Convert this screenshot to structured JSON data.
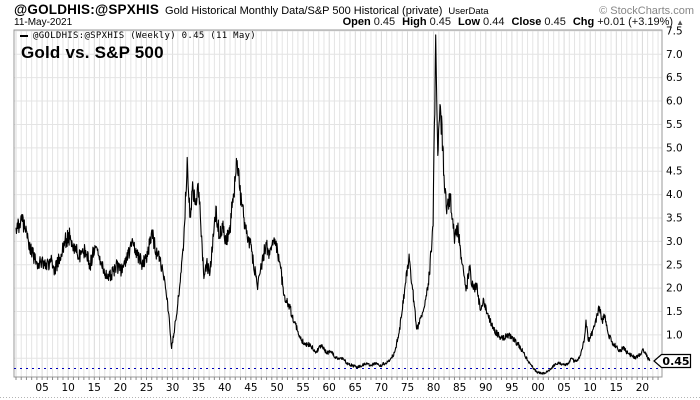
{
  "header": {
    "symbol": "@GOLDHIS:@SPXHIS",
    "description": "Gold Historical Monthly Data/S&P 500 Historical (private)",
    "source": "UserData",
    "copyright": "© StockCharts.com",
    "date": "11-May-2021",
    "quote": {
      "open_label": "Open",
      "open": "0.45",
      "high_label": "High",
      "high": "0.45",
      "low_label": "Low",
      "low": "0.44",
      "close_label": "Close",
      "close": "0.45",
      "chg_label": "Chg",
      "chg": "+0.01 (+3.19%)",
      "direction": "▲"
    }
  },
  "legend": {
    "marker": "—",
    "text": "@GOLDHIS:@SPXHIS (Weekly) 0.45 (11 May)"
  },
  "title": "Gold vs. S&P 500",
  "chart_data": {
    "type": "line",
    "title": "Gold vs. S&P 500",
    "series_name": "@GOLDHIS:@SPXHIS (Weekly)",
    "x_range": [
      1900,
      2023
    ],
    "y_range": [
      0.1,
      7.52
    ],
    "grid": true,
    "legend_position": "top-left",
    "y_grid_step": 0.5,
    "x_grid_step": 1,
    "y_ticks": [
      [
        1.0,
        "1.0"
      ],
      [
        1.5,
        "1.5"
      ],
      [
        2.0,
        "2.0"
      ],
      [
        2.5,
        "2.5"
      ],
      [
        3.0,
        "3.0"
      ],
      [
        3.5,
        "3.5"
      ],
      [
        4.0,
        "4.0"
      ],
      [
        4.5,
        "4.5"
      ],
      [
        5.0,
        "5.0"
      ],
      [
        5.5,
        "5.5"
      ],
      [
        6.0,
        "6.0"
      ],
      [
        6.5,
        "6.5"
      ],
      [
        7.0,
        "7.0"
      ],
      [
        7.5,
        "7.5"
      ]
    ],
    "x_ticks": [
      [
        1905,
        "05"
      ],
      [
        1910,
        "10"
      ],
      [
        1915,
        "15"
      ],
      [
        1920,
        "20"
      ],
      [
        1925,
        "25"
      ],
      [
        1930,
        "30"
      ],
      [
        1935,
        "35"
      ],
      [
        1940,
        "40"
      ],
      [
        1945,
        "45"
      ],
      [
        1950,
        "50"
      ],
      [
        1955,
        "55"
      ],
      [
        1960,
        "60"
      ],
      [
        1965,
        "65"
      ],
      [
        1970,
        "70"
      ],
      [
        1975,
        "75"
      ],
      [
        1980,
        "80"
      ],
      [
        1985,
        "85"
      ],
      [
        1990,
        "90"
      ],
      [
        1995,
        "95"
      ],
      [
        2000,
        "00"
      ],
      [
        2005,
        "05"
      ],
      [
        2010,
        "10"
      ],
      [
        2015,
        "15"
      ],
      [
        2020,
        "20"
      ]
    ],
    "last_value": 0.45,
    "last_label": "0.45",
    "colors": {
      "line": "#000000",
      "last_value_line": "#0000bb",
      "grid": "#e4e4e4",
      "grid5": "#d9d9d9",
      "axis": "#999999",
      "tick": "#8a8a8a",
      "label": "#000000"
    },
    "anchors": [
      [
        1900.0,
        3.25
      ],
      [
        1901.2,
        3.45
      ],
      [
        1902.3,
        3.05
      ],
      [
        1903.2,
        2.72
      ],
      [
        1904.2,
        2.48
      ],
      [
        1905.0,
        2.62
      ],
      [
        1905.8,
        2.43
      ],
      [
        1906.6,
        2.6
      ],
      [
        1907.4,
        2.38
      ],
      [
        1908.4,
        2.65
      ],
      [
        1909.4,
        3.02
      ],
      [
        1910.4,
        3.12
      ],
      [
        1911.4,
        2.82
      ],
      [
        1912.4,
        2.7
      ],
      [
        1913.2,
        2.82
      ],
      [
        1914.2,
        2.5
      ],
      [
        1915.2,
        2.9
      ],
      [
        1916.2,
        2.55
      ],
      [
        1917.2,
        2.28
      ],
      [
        1918.2,
        2.25
      ],
      [
        1919.2,
        2.48
      ],
      [
        1920.2,
        2.38
      ],
      [
        1921.2,
        2.65
      ],
      [
        1922.2,
        2.95
      ],
      [
        1923.2,
        2.72
      ],
      [
        1924.2,
        2.52
      ],
      [
        1925.2,
        2.7
      ],
      [
        1926.0,
        3.22
      ],
      [
        1926.8,
        2.8
      ],
      [
        1927.6,
        2.58
      ],
      [
        1928.4,
        2.25
      ],
      [
        1929.2,
        1.5
      ],
      [
        1929.8,
        0.72
      ],
      [
        1930.4,
        1.15
      ],
      [
        1931.0,
        1.65
      ],
      [
        1931.8,
        2.6
      ],
      [
        1932.3,
        3.35
      ],
      [
        1932.8,
        4.78
      ],
      [
        1933.3,
        3.5
      ],
      [
        1933.9,
        4.15
      ],
      [
        1934.4,
        3.75
      ],
      [
        1934.9,
        4.3
      ],
      [
        1935.4,
        3.3
      ],
      [
        1936.0,
        2.2
      ],
      [
        1936.5,
        2.55
      ],
      [
        1937.1,
        2.3
      ],
      [
        1938.3,
        3.7
      ],
      [
        1939.0,
        3.05
      ],
      [
        1939.5,
        3.35
      ],
      [
        1940.2,
        2.95
      ],
      [
        1941.0,
        3.3
      ],
      [
        1942.3,
        4.68
      ],
      [
        1943.2,
        3.8
      ],
      [
        1944.0,
        3.25
      ],
      [
        1945.0,
        2.9
      ],
      [
        1946.2,
        2.05
      ],
      [
        1947.0,
        2.45
      ],
      [
        1947.9,
        2.95
      ],
      [
        1948.6,
        2.7
      ],
      [
        1949.6,
        3.05
      ],
      [
        1950.4,
        2.6
      ],
      [
        1951.4,
        1.85
      ],
      [
        1952.4,
        1.6
      ],
      [
        1953.4,
        1.25
      ],
      [
        1954.4,
        0.95
      ],
      [
        1955.4,
        0.78
      ],
      [
        1956.4,
        0.8
      ],
      [
        1957.4,
        0.6
      ],
      [
        1958.4,
        0.78
      ],
      [
        1959.4,
        0.62
      ],
      [
        1960.4,
        0.63
      ],
      [
        1961.4,
        0.5
      ],
      [
        1962.6,
        0.52
      ],
      [
        1963.4,
        0.38
      ],
      [
        1964.4,
        0.35
      ],
      [
        1965.5,
        0.31
      ],
      [
        1966.4,
        0.36
      ],
      [
        1967.2,
        0.4
      ],
      [
        1968.0,
        0.34
      ],
      [
        1968.8,
        0.4
      ],
      [
        1969.7,
        0.33
      ],
      [
        1970.7,
        0.4
      ],
      [
        1971.6,
        0.45
      ],
      [
        1972.5,
        0.62
      ],
      [
        1973.4,
        1.05
      ],
      [
        1974.2,
        1.7
      ],
      [
        1975.3,
        2.72
      ],
      [
        1975.9,
        2.05
      ],
      [
        1976.8,
        1.12
      ],
      [
        1977.6,
        1.4
      ],
      [
        1978.4,
        1.75
      ],
      [
        1979.2,
        2.3
      ],
      [
        1979.9,
        3.3
      ],
      [
        1980.4,
        7.42
      ],
      [
        1980.8,
        4.9
      ],
      [
        1981.3,
        5.9
      ],
      [
        1982.0,
        4.4
      ],
      [
        1982.5,
        3.6
      ],
      [
        1983.2,
        4.0
      ],
      [
        1984.0,
        3.0
      ],
      [
        1984.6,
        3.3
      ],
      [
        1985.4,
        2.55
      ],
      [
        1986.2,
        1.95
      ],
      [
        1986.9,
        2.42
      ],
      [
        1987.6,
        1.95
      ],
      [
        1988.2,
        2.1
      ],
      [
        1988.9,
        1.55
      ],
      [
        1989.6,
        1.75
      ],
      [
        1990.4,
        1.45
      ],
      [
        1991.3,
        1.15
      ],
      [
        1992.2,
        1.02
      ],
      [
        1993.2,
        0.92
      ],
      [
        1994.2,
        1.0
      ],
      [
        1995.2,
        0.92
      ],
      [
        1996.2,
        0.8
      ],
      [
        1997.2,
        0.62
      ],
      [
        1998.1,
        0.45
      ],
      [
        1999.0,
        0.3
      ],
      [
        1999.8,
        0.2
      ],
      [
        2000.8,
        0.17
      ],
      [
        2001.8,
        0.21
      ],
      [
        2002.6,
        0.3
      ],
      [
        2003.4,
        0.38
      ],
      [
        2004.2,
        0.41
      ],
      [
        2004.9,
        0.36
      ],
      [
        2005.7,
        0.39
      ],
      [
        2006.4,
        0.5
      ],
      [
        2007.1,
        0.43
      ],
      [
        2007.9,
        0.5
      ],
      [
        2008.5,
        0.7
      ],
      [
        2008.9,
        0.95
      ],
      [
        2009.2,
        1.3
      ],
      [
        2009.6,
        0.88
      ],
      [
        2010.2,
        1.0
      ],
      [
        2010.9,
        1.2
      ],
      [
        2011.8,
        1.62
      ],
      [
        2012.3,
        1.28
      ],
      [
        2012.8,
        1.42
      ],
      [
        2013.5,
        1.0
      ],
      [
        2014.2,
        0.85
      ],
      [
        2014.9,
        0.76
      ],
      [
        2015.7,
        0.64
      ],
      [
        2016.4,
        0.74
      ],
      [
        2017.2,
        0.6
      ],
      [
        2018.0,
        0.55
      ],
      [
        2018.8,
        0.52
      ],
      [
        2019.5,
        0.58
      ],
      [
        2020.2,
        0.68
      ],
      [
        2020.8,
        0.55
      ],
      [
        2021.4,
        0.45
      ]
    ]
  }
}
